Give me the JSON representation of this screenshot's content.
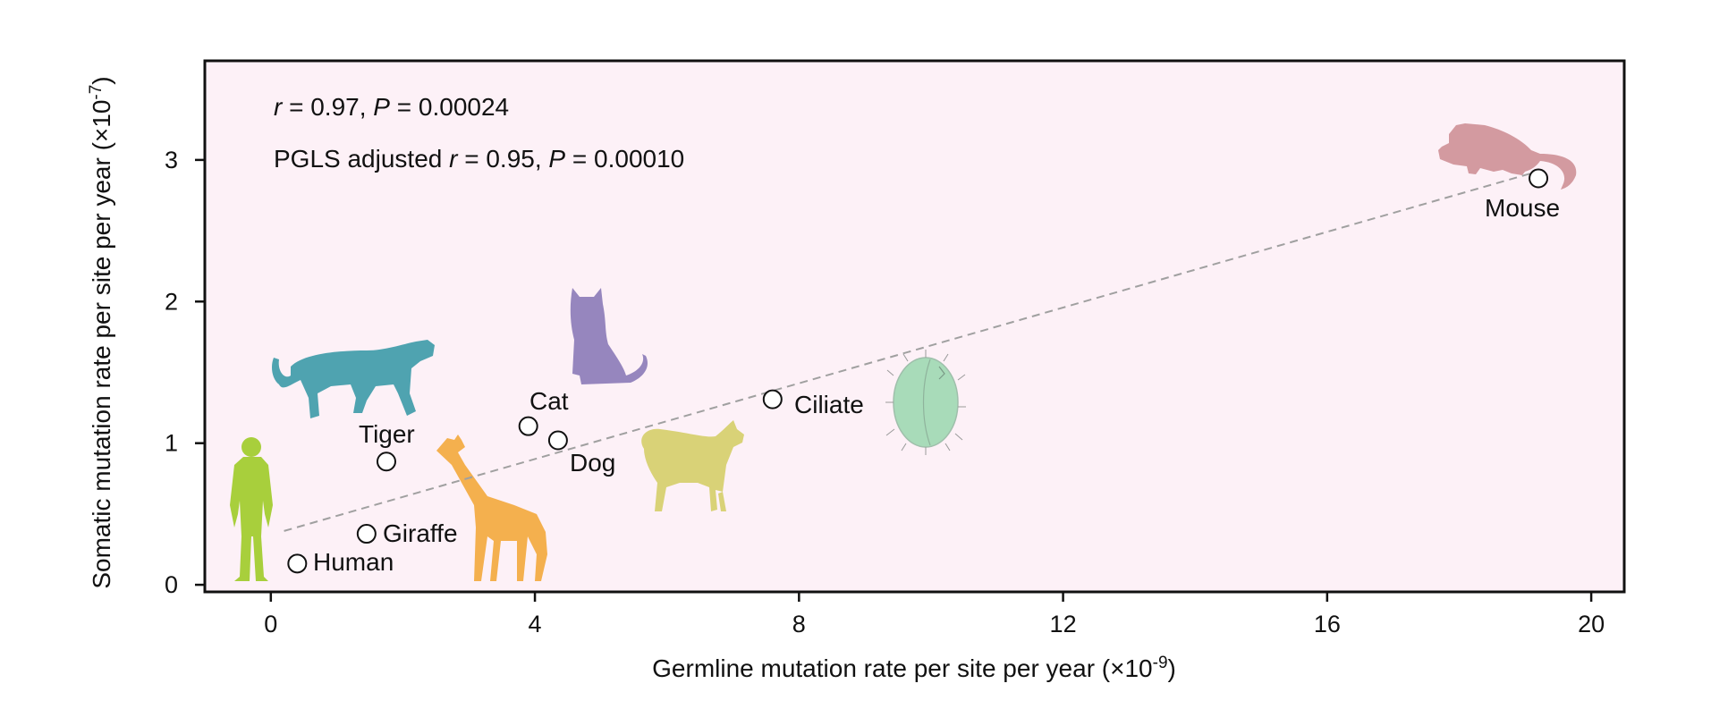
{
  "chart_data": {
    "type": "scatter",
    "xlabel_text": "Germline mutation rate per site per year (",
    "xlabel_mult": "×10",
    "xlabel_exp": "-9",
    "xlabel_close": ")",
    "ylabel_text": "Somatic mutation rate per site per year (",
    "ylabel_mult": "×10",
    "ylabel_exp": "-7",
    "ylabel_close": ")",
    "xlim": [
      -1,
      20.5
    ],
    "ylim": [
      -0.05,
      3.7
    ],
    "xticks": [
      0,
      4,
      8,
      12,
      16,
      20
    ],
    "yticks": [
      0,
      1,
      2,
      3
    ],
    "points": [
      {
        "label": "Human",
        "x": 0.4,
        "y": 0.15
      },
      {
        "label": "Giraffe",
        "x": 1.45,
        "y": 0.36
      },
      {
        "label": "Tiger",
        "x": 1.75,
        "y": 0.87
      },
      {
        "label": "Cat",
        "x": 3.9,
        "y": 1.12
      },
      {
        "label": "Dog",
        "x": 4.35,
        "y": 1.02
      },
      {
        "label": "Ciliate",
        "x": 7.6,
        "y": 1.31
      },
      {
        "label": "Mouse",
        "x": 19.2,
        "y": 2.87
      }
    ],
    "fit_line": {
      "x0": 0.2,
      "y0": 0.38,
      "x1": 19.2,
      "y1": 2.92
    },
    "stats": {
      "line1": {
        "r_sym": "r",
        "r_val": " = 0.97,  ",
        "p_sym": "P",
        "p_val": " = 0.00024"
      },
      "line2": {
        "prefix": "PGLS adjusted ",
        "r_sym": "r",
        "r_val": " = 0.95,  ",
        "p_sym": "P",
        "p_val": " = 0.00010"
      }
    }
  },
  "colors": {
    "plot_bg": "#fdf1f7",
    "axis": "#111111",
    "fit": "#a0a0a0",
    "human": "#a8cf3c",
    "giraffe": "#f4b04e",
    "tiger": "#4fa3b0",
    "cat": "#9686be",
    "dog": "#d9d277",
    "ciliate": "#a8dbb9",
    "mouse": "#d39aa0"
  },
  "icons": [
    "human-icon",
    "giraffe-icon",
    "tiger-icon",
    "cat-icon",
    "dog-icon",
    "ciliate-icon",
    "mouse-icon"
  ]
}
